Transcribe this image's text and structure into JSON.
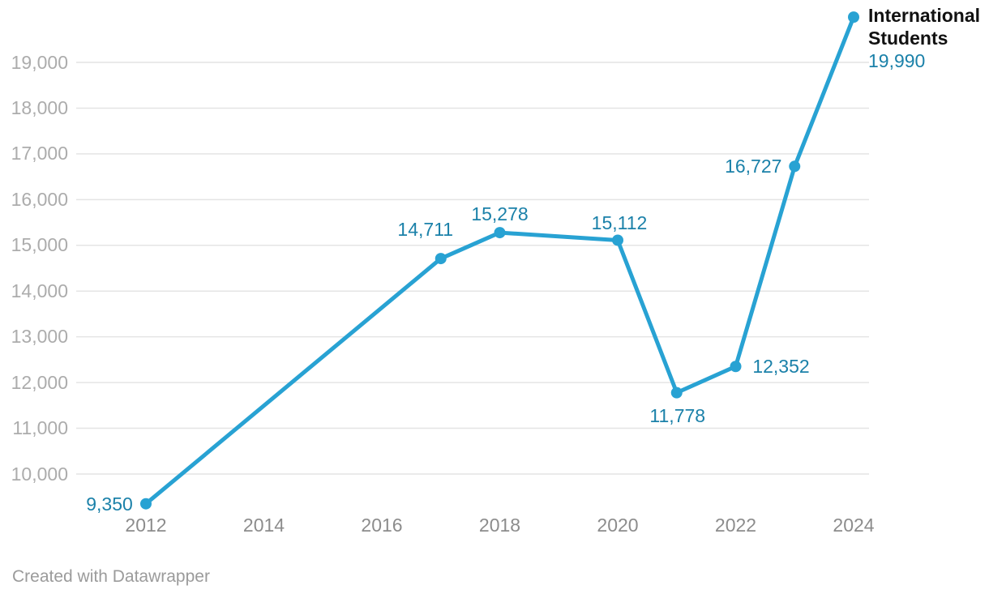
{
  "chart_data": {
    "type": "line",
    "title": "",
    "series_label": "International Students",
    "x": [
      2012,
      2017,
      2018,
      2020,
      2021,
      2022,
      2023,
      2024
    ],
    "values": [
      9350,
      14711,
      15278,
      15112,
      11778,
      12352,
      16727,
      19990
    ],
    "point_labels": [
      "9,350",
      "14,711",
      "15,278",
      "15,112",
      "11,778",
      "12,352",
      "16,727",
      "19,990"
    ],
    "x_ticks": {
      "values": [
        2012,
        2014,
        2016,
        2018,
        2020,
        2022,
        2024
      ],
      "labels": [
        "2012",
        "2014",
        "2016",
        "2018",
        "2020",
        "2022",
        "2024"
      ]
    },
    "y_ticks": {
      "values": [
        10000,
        11000,
        12000,
        13000,
        14000,
        15000,
        16000,
        17000,
        18000,
        19000
      ],
      "labels": [
        "10,000",
        "11,000",
        "12,000",
        "13,000",
        "14,000",
        "15,000",
        "16,000",
        "17,000",
        "18,000",
        "19,000"
      ]
    },
    "x_range": [
      2012,
      2024
    ],
    "y_range": [
      9350,
      19990
    ],
    "grid": "horizontal",
    "legend_position": "end-of-line",
    "colors": {
      "line": "#28A2D3",
      "points": "#28A2D3",
      "value_labels": "#1B81A9",
      "series_label": "#111111",
      "x_ticks": "#8C8C8C",
      "y_ticks": "#ACACAC",
      "gridlines": "#E4E4E4"
    }
  },
  "footer": {
    "credit": "Created with Datawrapper"
  }
}
